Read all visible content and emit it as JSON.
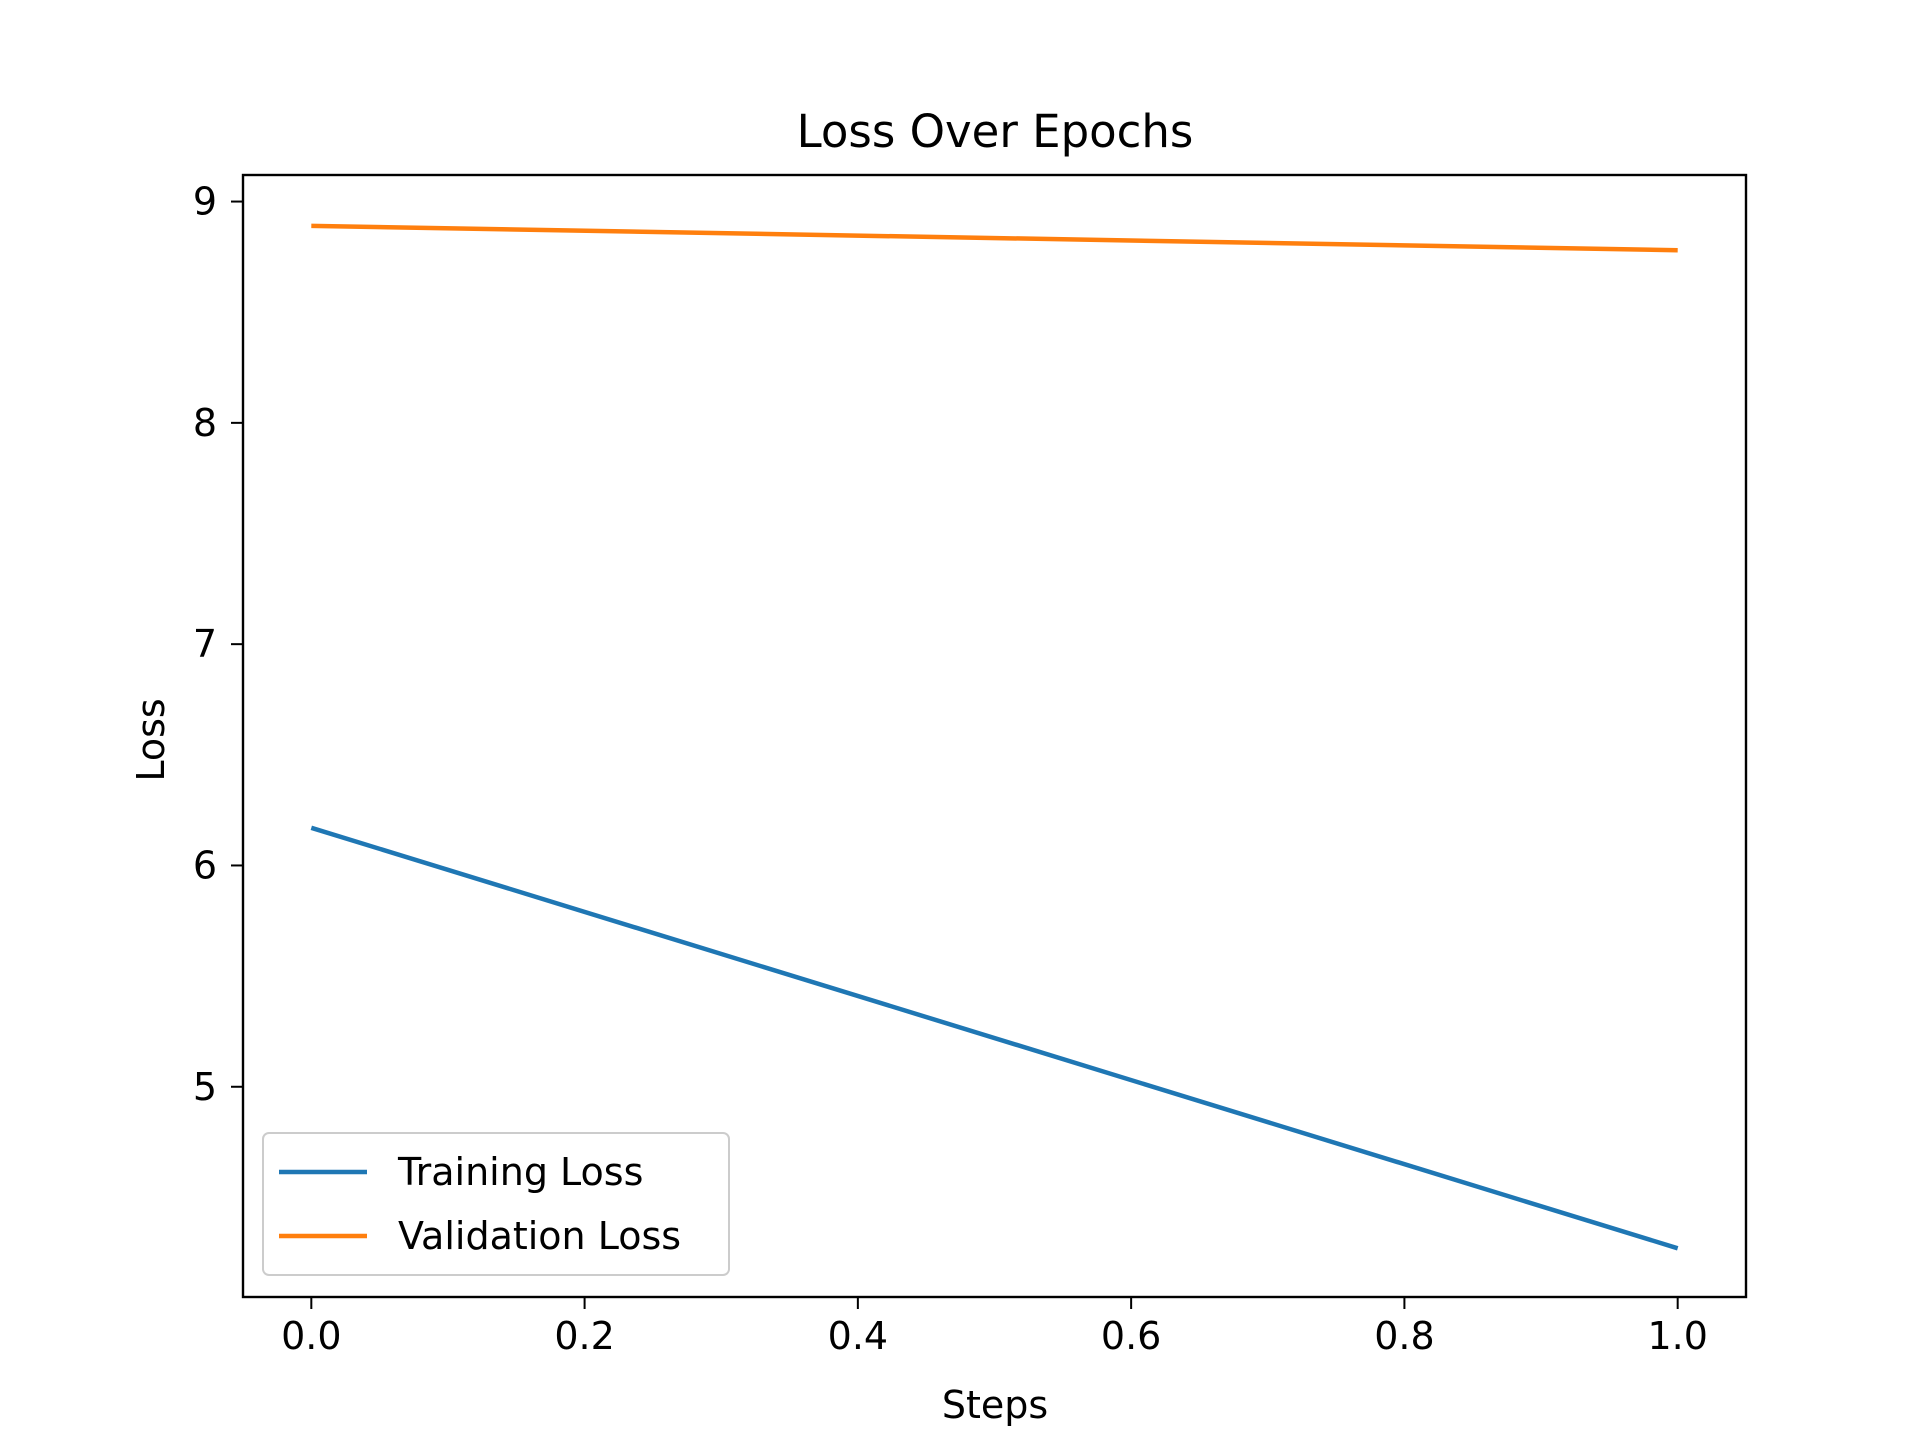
{
  "chart_data": {
    "type": "line",
    "title": "Loss Over Epochs",
    "xlabel": "Steps",
    "ylabel": "Loss",
    "xlim": [
      -0.05,
      1.05
    ],
    "ylim": [
      4.05,
      9.12
    ],
    "xticks": [
      0.0,
      0.2,
      0.4,
      0.6,
      0.8,
      1.0
    ],
    "xtick_labels": [
      "0.0",
      "0.2",
      "0.4",
      "0.6",
      "0.8",
      "1.0"
    ],
    "yticks": [
      5,
      6,
      7,
      8,
      9
    ],
    "ytick_labels": [
      "5",
      "6",
      "7",
      "8",
      "9"
    ],
    "grid": false,
    "legend_position": "lower-left",
    "series": [
      {
        "name": "Training Loss",
        "color": "#1f77b4",
        "x": [
          0.0,
          1.0
        ],
        "y": [
          6.17,
          4.27
        ]
      },
      {
        "name": "Validation Loss",
        "color": "#ff7f0e",
        "x": [
          0.0,
          1.0
        ],
        "y": [
          8.89,
          8.78
        ]
      }
    ]
  }
}
